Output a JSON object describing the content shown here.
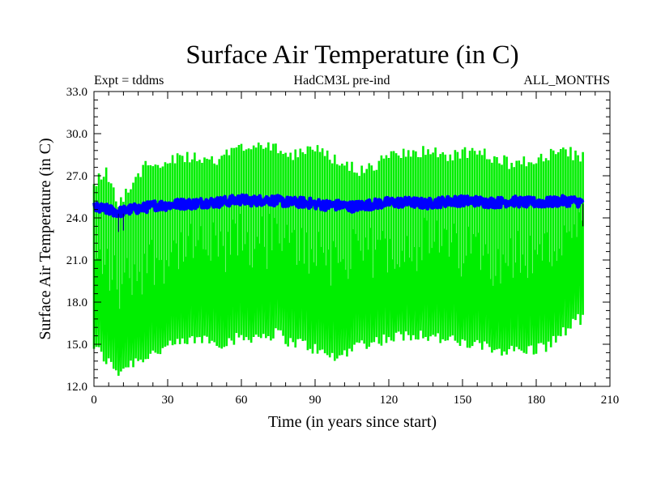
{
  "chart_data": {
    "type": "line",
    "title": "Surface Air Temperature (in C)",
    "header_left": "Expt = tddms",
    "header_center": "HadCM3L pre-ind",
    "header_right": "ALL_MONTHS",
    "xlabel": "Time (in years since start)",
    "ylabel": "Surface Air Temperature (in C)",
    "xlim": [
      0,
      210
    ],
    "ylim": [
      12.0,
      33.0
    ],
    "x_ticks": [
      "0",
      "30",
      "60",
      "90",
      "120",
      "150",
      "180",
      "210"
    ],
    "y_ticks": [
      "12.0",
      "15.0",
      "18.0",
      "21.0",
      "24.0",
      "27.0",
      "30.0",
      "33.0"
    ],
    "grid": false,
    "x_end": 199,
    "series": [
      {
        "color": "#00ee00",
        "kind": "monthly",
        "envelope_x": [
          0,
          5,
          10,
          15,
          20,
          25,
          30,
          35,
          40,
          45,
          50,
          55,
          60,
          65,
          70,
          75,
          80,
          85,
          90,
          95,
          100,
          105,
          110,
          115,
          120,
          125,
          130,
          135,
          140,
          145,
          150,
          155,
          160,
          165,
          170,
          175,
          180,
          185,
          190,
          195,
          199
        ],
        "max_env": [
          27.0,
          27.8,
          25.5,
          26.8,
          28.0,
          28.3,
          28.6,
          28.7,
          28.7,
          28.5,
          28.5,
          29.1,
          29.5,
          29.6,
          29.8,
          29.5,
          28.9,
          29.3,
          29.3,
          28.9,
          28.6,
          28.0,
          27.8,
          28.3,
          28.8,
          28.9,
          29.1,
          29.2,
          29.0,
          28.9,
          29.0,
          29.2,
          28.9,
          28.6,
          28.3,
          28.4,
          28.6,
          29.0,
          29.3,
          29.0,
          28.8
        ],
        "min_env": [
          14.4,
          13.4,
          12.6,
          13.2,
          13.6,
          14.0,
          14.3,
          14.6,
          14.8,
          15.0,
          14.6,
          14.8,
          15.0,
          15.1,
          15.2,
          15.3,
          14.7,
          14.6,
          14.2,
          13.7,
          13.6,
          14.4,
          14.6,
          14.8,
          15.0,
          15.1,
          15.3,
          15.2,
          15.0,
          14.8,
          14.6,
          14.5,
          14.3,
          14.2,
          14.1,
          14.1,
          14.2,
          14.5,
          15.2,
          16.0,
          16.5
        ]
      },
      {
        "color": "#0000ff",
        "kind": "annual_mean",
        "x": [
          0,
          5,
          10,
          15,
          20,
          25,
          30,
          35,
          40,
          45,
          50,
          55,
          60,
          65,
          70,
          75,
          80,
          85,
          90,
          95,
          100,
          105,
          110,
          115,
          120,
          125,
          130,
          135,
          140,
          145,
          150,
          155,
          160,
          165,
          170,
          175,
          180,
          185,
          190,
          195,
          199
        ],
        "values": [
          24.7,
          24.6,
          24.4,
          24.6,
          24.7,
          24.9,
          24.9,
          25.0,
          25.0,
          25.1,
          25.1,
          25.2,
          25.3,
          25.2,
          25.3,
          25.2,
          25.1,
          25.1,
          25.0,
          24.9,
          24.9,
          24.8,
          24.9,
          25.0,
          25.1,
          25.1,
          25.1,
          25.0,
          25.1,
          25.2,
          25.2,
          25.2,
          25.1,
          25.1,
          25.2,
          25.1,
          25.1,
          25.1,
          25.2,
          25.2,
          25.1
        ],
        "band": 0.45
      }
    ]
  }
}
